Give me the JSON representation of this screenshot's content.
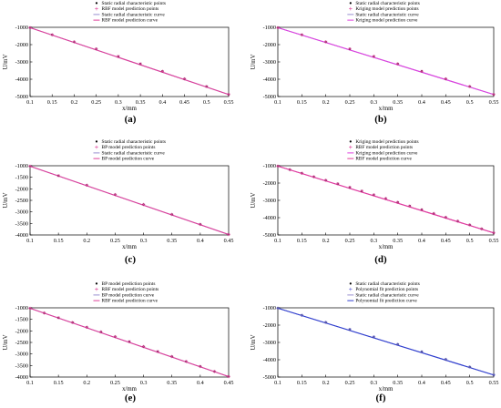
{
  "chart_data": [
    {
      "type": "line",
      "panel_label": "(a)",
      "xlabel": "x/mm",
      "ylabel": "U/mV",
      "xlim": [
        0.1,
        0.55
      ],
      "ylim": [
        -5000,
        -1000
      ],
      "xticks": [
        0.1,
        0.15,
        0.2,
        0.25,
        0.3,
        0.35,
        0.4,
        0.45,
        0.5,
        0.55
      ],
      "xtick_labels": [
        "0.1",
        "0.15",
        "0.2",
        "0.25",
        "0.3",
        "0.35",
        "0.4",
        "0.45",
        "0.5",
        "0.55"
      ],
      "yticks": [
        -1000,
        -2000,
        -3000,
        -4000,
        -5000
      ],
      "ytick_labels": [
        "-1000",
        "-2000",
        "-3000",
        "-4000",
        "-5000"
      ],
      "legend_position": "top-right",
      "series": [
        {
          "name": "Static radial characteristic points",
          "kind": "points",
          "marker": "dot",
          "color": "#000000",
          "x": [
            0.1,
            0.15,
            0.2,
            0.25,
            0.3,
            0.35,
            0.4,
            0.45,
            0.5,
            0.55
          ],
          "y": [
            -1020,
            -1430,
            -1840,
            -2250,
            -2680,
            -3110,
            -3540,
            -3980,
            -4420,
            -4880
          ]
        },
        {
          "name": "RBF model prediction points",
          "kind": "points",
          "marker": "star",
          "color": "#e0409a",
          "x": [
            0.1,
            0.15,
            0.2,
            0.25,
            0.3,
            0.35,
            0.4,
            0.45,
            0.5,
            0.55
          ],
          "y": [
            -1020,
            -1430,
            -1840,
            -2250,
            -2680,
            -3110,
            -3540,
            -3980,
            -4420,
            -4880
          ]
        },
        {
          "name": "Static radial characteristic curve",
          "kind": "curve",
          "color": "#9a8fd0",
          "x": [
            0.1,
            0.55
          ],
          "y": [
            -1020,
            -4880
          ]
        },
        {
          "name": "RBF model prediction curve",
          "kind": "curve",
          "color": "#e0409a",
          "x": [
            0.1,
            0.55
          ],
          "y": [
            -1020,
            -4880
          ]
        }
      ]
    },
    {
      "type": "line",
      "panel_label": "(b)",
      "xlabel": "x/mm",
      "ylabel": "U/mV",
      "xlim": [
        0.1,
        0.55
      ],
      "ylim": [
        -5000,
        -1000
      ],
      "xticks": [
        0.1,
        0.15,
        0.2,
        0.25,
        0.3,
        0.35,
        0.4,
        0.45,
        0.5,
        0.55
      ],
      "xtick_labels": [
        "0.1",
        "0.15",
        "0.2",
        "0.25",
        "0.3",
        "0.35",
        "0.4",
        "0.45",
        "0.5",
        "0.55"
      ],
      "yticks": [
        -1000,
        -2000,
        -3000,
        -4000,
        -5000
      ],
      "ytick_labels": [
        "-1000",
        "-2000",
        "-3000",
        "-4000",
        "-5000"
      ],
      "legend_position": "top-right",
      "series": [
        {
          "name": "Static radial characteristic points",
          "kind": "points",
          "marker": "dot",
          "color": "#000000",
          "x": [
            0.1,
            0.15,
            0.2,
            0.25,
            0.3,
            0.35,
            0.4,
            0.45,
            0.5,
            0.55
          ],
          "y": [
            -1020,
            -1430,
            -1840,
            -2250,
            -2680,
            -3110,
            -3540,
            -3980,
            -4420,
            -4880
          ]
        },
        {
          "name": "Kriging model prediction points",
          "kind": "points",
          "marker": "star",
          "color": "#e0409a",
          "x": [
            0.1,
            0.15,
            0.2,
            0.25,
            0.3,
            0.35,
            0.4,
            0.45,
            0.5,
            0.55
          ],
          "y": [
            -1020,
            -1430,
            -1840,
            -2250,
            -2680,
            -3110,
            -3540,
            -3980,
            -4420,
            -4880
          ]
        },
        {
          "name": "Static radial characteristic curve",
          "kind": "curve",
          "color": "#9a8fd0",
          "x": [
            0.1,
            0.55
          ],
          "y": [
            -1020,
            -4880
          ]
        },
        {
          "name": "Kriging model prediction curve",
          "kind": "curve",
          "color": "#e040e0",
          "x": [
            0.1,
            0.55
          ],
          "y": [
            -1020,
            -4880
          ]
        }
      ]
    },
    {
      "type": "line",
      "panel_label": "(c)",
      "xlabel": "x/mm",
      "ylabel": "U/mV",
      "xlim": [
        0.1,
        0.45
      ],
      "ylim": [
        -4000,
        -1000
      ],
      "xticks": [
        0.1,
        0.15,
        0.2,
        0.25,
        0.3,
        0.35,
        0.4,
        0.45
      ],
      "xtick_labels": [
        "0.1",
        "0.15",
        "0.2",
        "0.25",
        "0.3",
        "0.35",
        "0.4",
        "0.45"
      ],
      "yticks": [
        -1000,
        -1500,
        -2000,
        -2500,
        -3000,
        -3500,
        -4000
      ],
      "ytick_labels": [
        "-1000",
        "-1500",
        "-2000",
        "-2500",
        "-3000",
        "-3500",
        "-4000"
      ],
      "legend_position": "top-right",
      "series": [
        {
          "name": "Static radial characteristic points",
          "kind": "points",
          "marker": "dot",
          "color": "#000000",
          "x": [
            0.1,
            0.15,
            0.2,
            0.25,
            0.3,
            0.35,
            0.4,
            0.45
          ],
          "y": [
            -1020,
            -1430,
            -1840,
            -2250,
            -2680,
            -3110,
            -3540,
            -3980
          ]
        },
        {
          "name": "BP model prediction points",
          "kind": "points",
          "marker": "star",
          "color": "#e0409a",
          "x": [
            0.1,
            0.15,
            0.2,
            0.25,
            0.3,
            0.35,
            0.4,
            0.45
          ],
          "y": [
            -1020,
            -1430,
            -1840,
            -2250,
            -2680,
            -3110,
            -3540,
            -3980
          ]
        },
        {
          "name": "Static radial characteristic curve",
          "kind": "curve",
          "color": "#9a8fd0",
          "x": [
            0.1,
            0.45
          ],
          "y": [
            -1020,
            -3980
          ]
        },
        {
          "name": "BP model prediction curve",
          "kind": "curve",
          "color": "#e0409a",
          "x": [
            0.1,
            0.45
          ],
          "y": [
            -1020,
            -3980
          ]
        }
      ]
    },
    {
      "type": "line",
      "panel_label": "(d)",
      "xlabel": "x/mm",
      "ylabel": "U/mV",
      "xlim": [
        0.1,
        0.55
      ],
      "ylim": [
        -5000,
        -1000
      ],
      "xticks": [
        0.1,
        0.15,
        0.2,
        0.25,
        0.3,
        0.35,
        0.4,
        0.45,
        0.5,
        0.55
      ],
      "xtick_labels": [
        "0.1",
        "0.15",
        "0.2",
        "0.25",
        "0.3",
        "0.35",
        "0.4",
        "0.45",
        "0.5",
        "0.55"
      ],
      "yticks": [
        -1000,
        -2000,
        -3000,
        -4000,
        -5000
      ],
      "ytick_labels": [
        "-1000",
        "-2000",
        "-3000",
        "-4000",
        "-5000"
      ],
      "legend_position": "top-right",
      "series": [
        {
          "name": "Kriging model prediction points",
          "kind": "points",
          "marker": "dot",
          "color": "#000000",
          "x": [
            0.1,
            0.125,
            0.15,
            0.175,
            0.2,
            0.225,
            0.25,
            0.275,
            0.3,
            0.325,
            0.35,
            0.375,
            0.4,
            0.425,
            0.45,
            0.475,
            0.5,
            0.525,
            0.55
          ],
          "y": [
            -1020,
            -1225,
            -1430,
            -1635,
            -1840,
            -2045,
            -2250,
            -2465,
            -2680,
            -2895,
            -3110,
            -3325,
            -3540,
            -3760,
            -3980,
            -4200,
            -4420,
            -4650,
            -4880
          ]
        },
        {
          "name": "RBF model prediction points",
          "kind": "points",
          "marker": "star",
          "color": "#e0409a",
          "x": [
            0.1,
            0.125,
            0.15,
            0.175,
            0.2,
            0.225,
            0.25,
            0.275,
            0.3,
            0.325,
            0.35,
            0.375,
            0.4,
            0.425,
            0.45,
            0.475,
            0.5,
            0.525,
            0.55
          ],
          "y": [
            -1020,
            -1225,
            -1430,
            -1635,
            -1840,
            -2045,
            -2250,
            -2465,
            -2680,
            -2895,
            -3110,
            -3325,
            -3540,
            -3760,
            -3980,
            -4200,
            -4420,
            -4650,
            -4880
          ]
        },
        {
          "name": "Kriging model prediction curve",
          "kind": "curve",
          "color": "#e040e0",
          "x": [
            0.1,
            0.55
          ],
          "y": [
            -1020,
            -4880
          ]
        },
        {
          "name": "RBF model prediction curve",
          "kind": "curve",
          "color": "#e0409a",
          "x": [
            0.1,
            0.55
          ],
          "y": [
            -1020,
            -4880
          ]
        }
      ]
    },
    {
      "type": "line",
      "panel_label": "(e)",
      "xlabel": "x/mm",
      "ylabel": "U/mV",
      "xlim": [
        0.1,
        0.45
      ],
      "ylim": [
        -4000,
        -1000
      ],
      "xticks": [
        0.1,
        0.15,
        0.2,
        0.25,
        0.3,
        0.35,
        0.4,
        0.45
      ],
      "xtick_labels": [
        "0.1",
        "0.15",
        "0.2",
        "0.25",
        "0.3",
        "0.35",
        "0.4",
        "0.45"
      ],
      "yticks": [
        -1000,
        -1500,
        -2000,
        -2500,
        -3000,
        -3500,
        -4000
      ],
      "ytick_labels": [
        "-1000",
        "-1500",
        "-2000",
        "-2500",
        "-3000",
        "-3500",
        "-4000"
      ],
      "legend_position": "top-right",
      "series": [
        {
          "name": "BP model prediction points",
          "kind": "points",
          "marker": "dot",
          "color": "#000000",
          "x": [
            0.1,
            0.125,
            0.15,
            0.175,
            0.2,
            0.225,
            0.25,
            0.275,
            0.3,
            0.325,
            0.35,
            0.375,
            0.4,
            0.425,
            0.45
          ],
          "y": [
            -1020,
            -1225,
            -1430,
            -1635,
            -1840,
            -2045,
            -2250,
            -2465,
            -2680,
            -2895,
            -3110,
            -3325,
            -3540,
            -3760,
            -3980
          ]
        },
        {
          "name": "RBF model prediction points",
          "kind": "points",
          "marker": "star",
          "color": "#e0409a",
          "x": [
            0.1,
            0.125,
            0.15,
            0.175,
            0.2,
            0.225,
            0.25,
            0.275,
            0.3,
            0.325,
            0.35,
            0.375,
            0.4,
            0.425,
            0.45
          ],
          "y": [
            -1020,
            -1225,
            -1430,
            -1635,
            -1840,
            -2045,
            -2250,
            -2465,
            -2680,
            -2895,
            -3110,
            -3325,
            -3540,
            -3760,
            -3980
          ]
        },
        {
          "name": "BP model prediction curve",
          "kind": "curve",
          "color": "#9a8fd0",
          "x": [
            0.1,
            0.45
          ],
          "y": [
            -1020,
            -3980
          ]
        },
        {
          "name": "RBF model prediction curve",
          "kind": "curve",
          "color": "#e0409a",
          "x": [
            0.1,
            0.45
          ],
          "y": [
            -1020,
            -3980
          ]
        }
      ]
    },
    {
      "type": "line",
      "panel_label": "(f)",
      "xlabel": "x/mm",
      "ylabel": "U/mV",
      "xlim": [
        0.1,
        0.55
      ],
      "ylim": [
        -5000,
        -1000
      ],
      "xticks": [
        0.1,
        0.15,
        0.2,
        0.25,
        0.3,
        0.35,
        0.4,
        0.45,
        0.5,
        0.55
      ],
      "xtick_labels": [
        "0.1",
        "0.15",
        "0.2",
        "0.25",
        "0.3",
        "0.35",
        "0.4",
        "0.45",
        "0.5",
        "0.55"
      ],
      "yticks": [
        -1000,
        -2000,
        -3000,
        -4000,
        -5000
      ],
      "ytick_labels": [
        "-1000",
        "-2000",
        "-3000",
        "-4000",
        "-5000"
      ],
      "legend_position": "top-right",
      "series": [
        {
          "name": "Static radial characteristic points",
          "kind": "points",
          "marker": "dot",
          "color": "#000000",
          "x": [
            0.1,
            0.15,
            0.2,
            0.25,
            0.3,
            0.35,
            0.4,
            0.45,
            0.5,
            0.55
          ],
          "y": [
            -1020,
            -1430,
            -1840,
            -2250,
            -2680,
            -3110,
            -3540,
            -3980,
            -4420,
            -4880
          ]
        },
        {
          "name": "Polynomial fit prediction points",
          "kind": "points",
          "marker": "star",
          "color": "#6a6ad8",
          "x": [
            0.1,
            0.15,
            0.2,
            0.25,
            0.3,
            0.35,
            0.4,
            0.45,
            0.5,
            0.55
          ],
          "y": [
            -1020,
            -1430,
            -1840,
            -2250,
            -2680,
            -3110,
            -3540,
            -3980,
            -4420,
            -4880
          ]
        },
        {
          "name": "Static radial characteristic curve",
          "kind": "curve",
          "color": "#9a8fd0",
          "x": [
            0.1,
            0.55
          ],
          "y": [
            -1020,
            -4880
          ]
        },
        {
          "name": "Polynomial fit prediction curve",
          "kind": "curve",
          "color": "#2e3fd0",
          "x": [
            0.1,
            0.55
          ],
          "y": [
            -1020,
            -4880
          ]
        }
      ]
    }
  ]
}
